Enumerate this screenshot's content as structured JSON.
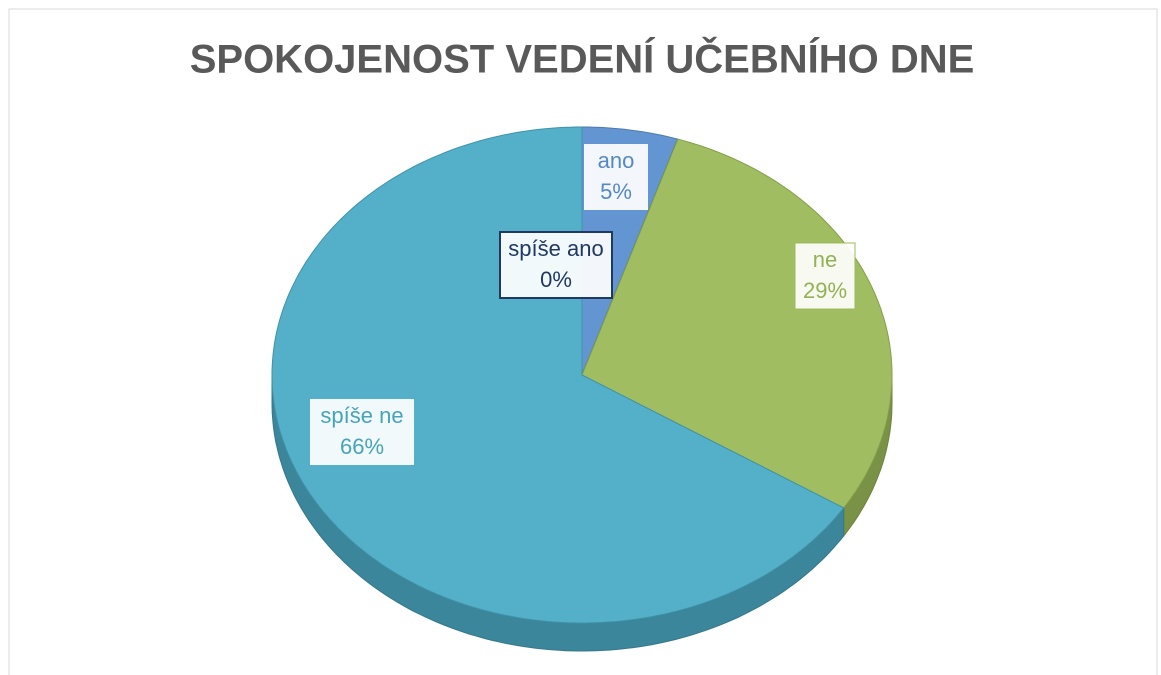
{
  "chart_data": {
    "type": "pie",
    "title": "SPOKOJENOST VEDENÍ UČEBNÍHO DNE",
    "categories": [
      "ano",
      "spíše ano",
      "ne",
      "spíše ne"
    ],
    "values": [
      5,
      0,
      29,
      66
    ],
    "value_labels": [
      "5%",
      "0%",
      "29%",
      "66%"
    ],
    "colors": [
      "#5b8fd0",
      "#1f3864",
      "#9bbb59",
      "#4bacc6"
    ]
  }
}
